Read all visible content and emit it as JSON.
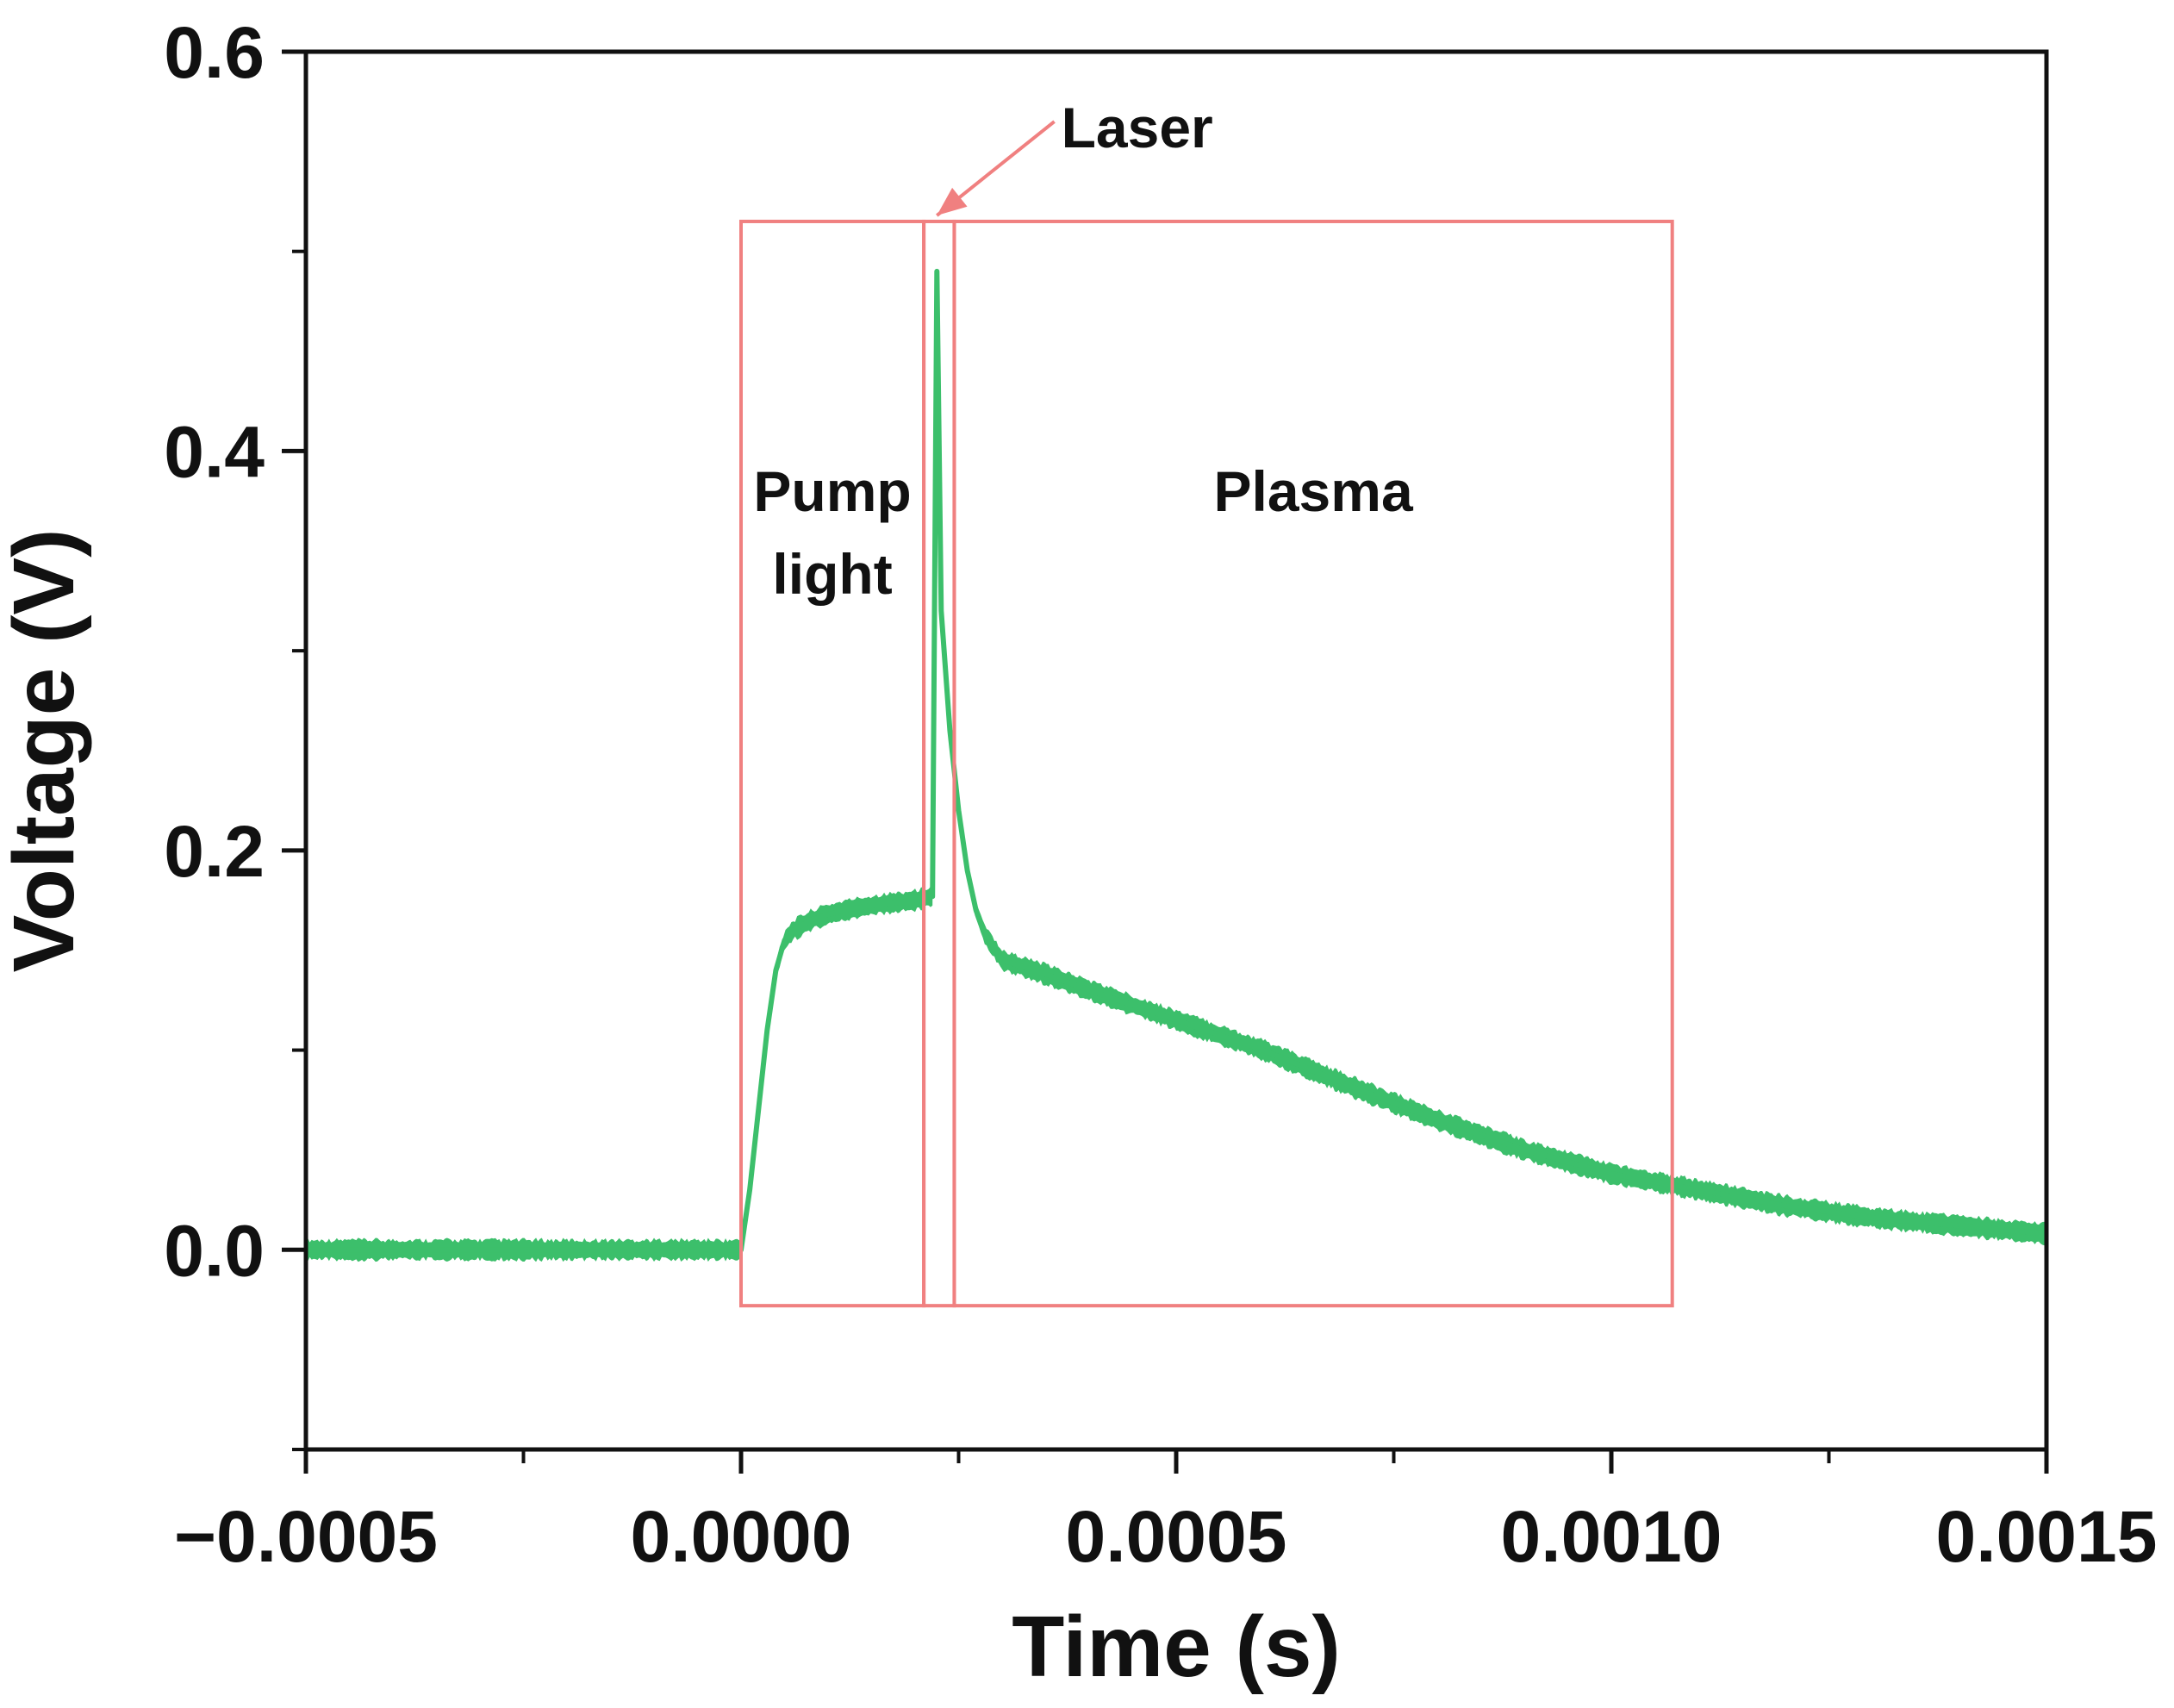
{
  "chart_data": {
    "type": "line",
    "xlabel": "Time (s)",
    "ylabel": "Voltage (V)",
    "xlim": [
      -0.0005,
      0.0015
    ],
    "ylim": [
      -0.1,
      0.6
    ],
    "x_ticks": [
      "-0.0005",
      "0.0000",
      "0.0005",
      "0.0010",
      "0.0015"
    ],
    "x_tick_values": [
      -0.0005,
      0.0,
      0.0005,
      0.001,
      0.0015
    ],
    "y_ticks": [
      "0.0",
      "0.2",
      "0.4",
      "0.6"
    ],
    "y_tick_values": [
      0.0,
      0.2,
      0.4,
      0.6
    ],
    "grid": false,
    "series": [
      {
        "color": "#3cbf6b",
        "noise_band": 0.012,
        "x": [
          -0.0005,
          -0.0001,
          -1e-05,
          0.0,
          1e-05,
          2e-05,
          3e-05,
          4e-05,
          5e-05,
          6e-05,
          8e-05,
          0.0001,
          0.00013,
          0.00016,
          0.00018,
          0.0002,
          0.00021,
          0.00022,
          0.000225,
          0.00023,
          0.00024,
          0.00025,
          0.00026,
          0.00027,
          0.00028,
          0.0003,
          0.00035,
          0.0004,
          0.0005,
          0.0006,
          0.0007,
          0.0008,
          0.0009,
          0.001,
          0.0011,
          0.0012,
          0.0013,
          0.0014,
          0.0015
        ],
        "y": [
          0.0,
          0.0,
          0.0,
          0.0,
          0.03,
          0.07,
          0.11,
          0.14,
          0.155,
          0.16,
          0.165,
          0.168,
          0.171,
          0.173,
          0.174,
          0.175,
          0.176,
          0.177,
          0.49,
          0.32,
          0.26,
          0.22,
          0.19,
          0.17,
          0.158,
          0.145,
          0.138,
          0.13,
          0.115,
          0.1,
          0.082,
          0.065,
          0.05,
          0.038,
          0.03,
          0.022,
          0.016,
          0.012,
          0.008
        ]
      }
    ],
    "annotations": {
      "region_color": "#f08080",
      "regions": [
        {
          "label_lines": [
            "Pump",
            "light"
          ],
          "x0": 0.0,
          "x1": 0.00021,
          "y0": -0.028,
          "y1": 0.515
        },
        {
          "label_lines": [
            ""
          ],
          "x0": 0.00021,
          "x1": 0.000245,
          "y0": -0.028,
          "y1": 0.515
        },
        {
          "label_lines": [
            "Plasma"
          ],
          "x0": 0.000245,
          "x1": 0.00107,
          "y0": -0.028,
          "y1": 0.515
        }
      ],
      "arrow": {
        "label": "Laser",
        "from_x": 0.00036,
        "from_y": 0.565,
        "to_x": 0.000225,
        "to_y": 0.518
      }
    }
  }
}
